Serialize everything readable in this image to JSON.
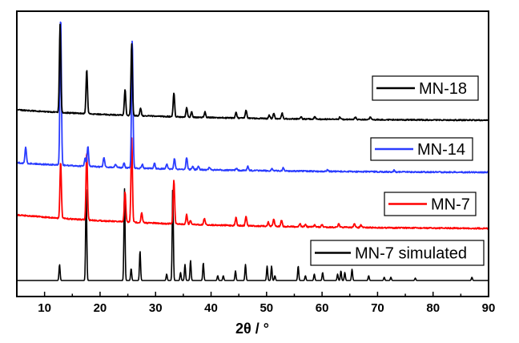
{
  "chart_data": {
    "type": "line",
    "title": "",
    "xlabel": "2θ / °",
    "ylabel": "",
    "xlim": [
      5,
      90
    ],
    "xticks": [
      10,
      20,
      30,
      40,
      50,
      60,
      70,
      80,
      90
    ],
    "grid": false,
    "legend_placement": "right, beside each trace",
    "stacked": true,
    "series": [
      {
        "name": "MN-18",
        "color": "#000000",
        "peaks": [
          [
            12.8,
            110
          ],
          [
            17.6,
            55
          ],
          [
            24.5,
            32
          ],
          [
            25.7,
            90
          ],
          [
            27.3,
            10
          ],
          [
            33.3,
            30
          ],
          [
            35.6,
            12
          ],
          [
            36.5,
            7
          ],
          [
            38.9,
            7
          ],
          [
            44.5,
            7
          ],
          [
            46.3,
            10
          ],
          [
            50.5,
            4
          ],
          [
            51.3,
            7
          ],
          [
            52.8,
            7
          ],
          [
            56.2,
            3
          ],
          [
            58.7,
            3
          ],
          [
            63.2,
            3
          ],
          [
            66.0,
            3
          ],
          [
            68.7,
            3
          ]
        ]
      },
      {
        "name": "MN-14",
        "color": "#2a3cff",
        "peaks": [
          [
            6.6,
            20
          ],
          [
            12.9,
            185
          ],
          [
            17.3,
            10
          ],
          [
            17.8,
            25
          ],
          [
            20.7,
            12
          ],
          [
            22.8,
            4
          ],
          [
            24.3,
            6
          ],
          [
            25.8,
            160
          ],
          [
            27.6,
            5
          ],
          [
            29.8,
            7
          ],
          [
            32.0,
            6
          ],
          [
            33.4,
            13
          ],
          [
            35.6,
            15
          ],
          [
            36.7,
            4
          ],
          [
            37.7,
            4
          ],
          [
            39.7,
            3
          ],
          [
            44.6,
            3
          ],
          [
            46.6,
            5
          ],
          [
            51.0,
            3
          ],
          [
            53.0,
            4
          ],
          [
            61.0,
            2
          ],
          [
            73.0,
            2
          ]
        ]
      },
      {
        "name": "MN-7",
        "color": "#ff0000",
        "peaks": [
          [
            12.9,
            70
          ],
          [
            17.6,
            85
          ],
          [
            24.5,
            38
          ],
          [
            25.7,
            105
          ],
          [
            27.5,
            12
          ],
          [
            33.3,
            55
          ],
          [
            35.6,
            12
          ],
          [
            36.3,
            5
          ],
          [
            38.8,
            8
          ],
          [
            44.5,
            10
          ],
          [
            46.3,
            12
          ],
          [
            50.3,
            5
          ],
          [
            51.3,
            9
          ],
          [
            52.7,
            8
          ],
          [
            56.0,
            4
          ],
          [
            57.0,
            3
          ],
          [
            58.7,
            3
          ],
          [
            60.0,
            3
          ],
          [
            63.0,
            4
          ],
          [
            65.8,
            5
          ],
          [
            67.0,
            3
          ]
        ]
      },
      {
        "name": "MN-7 simulated",
        "color": "#000000",
        "peaks": [
          [
            12.7,
            20
          ],
          [
            17.5,
            115
          ],
          [
            24.4,
            115
          ],
          [
            25.6,
            15
          ],
          [
            27.2,
            37
          ],
          [
            32.0,
            8
          ],
          [
            33.1,
            118
          ],
          [
            34.5,
            10
          ],
          [
            35.3,
            20
          ],
          [
            36.3,
            25
          ],
          [
            38.6,
            22
          ],
          [
            41.2,
            6
          ],
          [
            42.2,
            6
          ],
          [
            44.4,
            12
          ],
          [
            46.2,
            20
          ],
          [
            50.1,
            18
          ],
          [
            50.9,
            18
          ],
          [
            51.5,
            6
          ],
          [
            55.7,
            18
          ],
          [
            57.0,
            6
          ],
          [
            58.6,
            8
          ],
          [
            60.1,
            10
          ],
          [
            62.8,
            8
          ],
          [
            63.4,
            12
          ],
          [
            64.1,
            10
          ],
          [
            65.4,
            14
          ],
          [
            68.4,
            6
          ],
          [
            71.2,
            4
          ],
          [
            72.4,
            4
          ],
          [
            76.8,
            3
          ],
          [
            87.0,
            4
          ]
        ]
      }
    ]
  }
}
